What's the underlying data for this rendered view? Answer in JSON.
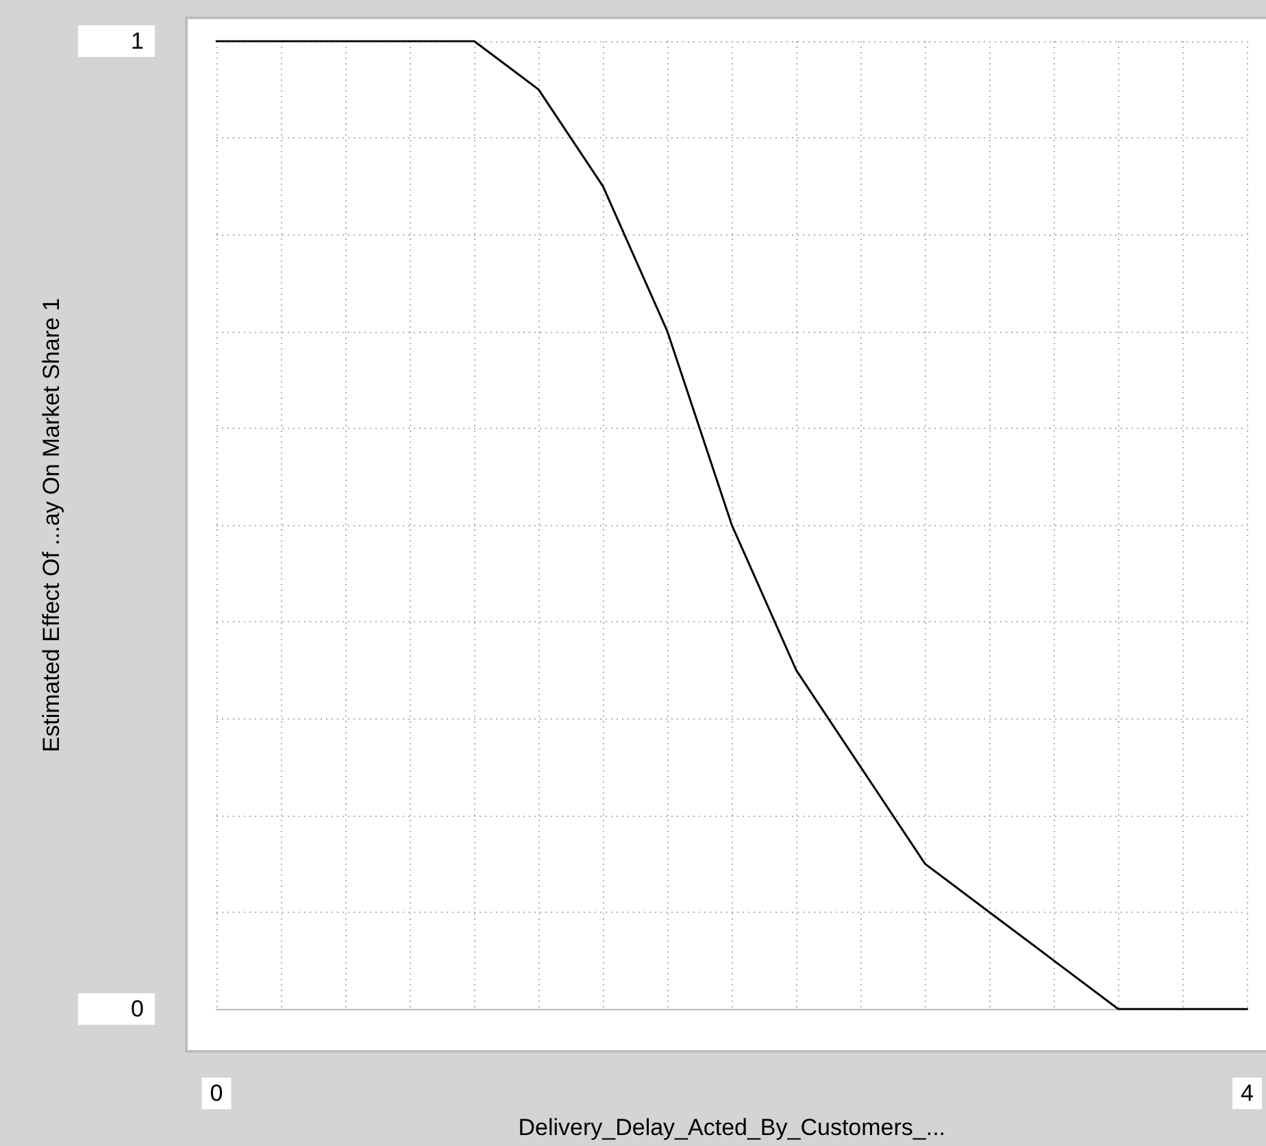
{
  "chart_data": {
    "type": "line",
    "xlabel": "Delivery_Delay_Acted_By_Customers_...",
    "ylabel": "Estimated Effect Of ...ay On Market Share 1",
    "x": [
      0,
      0.25,
      0.5,
      0.75,
      1.0,
      1.25,
      1.5,
      1.75,
      2.0,
      2.25,
      2.5,
      2.75,
      3.0,
      3.25,
      3.5,
      3.75,
      4.0
    ],
    "series": [
      {
        "color": "#000000",
        "values": [
          1,
          1,
          1,
          1,
          1,
          0.95,
          0.85,
          0.7,
          0.5,
          0.35,
          0.25,
          0.15,
          0.1,
          0.05,
          0,
          0,
          0
        ]
      }
    ],
    "xlim": [
      0,
      4
    ],
    "xticks": [
      0,
      {
        "value": 0.25,
        "label": null
      },
      {
        "value": 0.5,
        "label": null
      },
      {
        "value": 0.75,
        "label": null
      },
      {
        "value": 1,
        "label": null
      },
      {
        "value": 1.25,
        "label": null
      },
      {
        "value": 1.5,
        "label": null
      },
      {
        "value": 1.75,
        "label": null
      },
      {
        "value": 2,
        "label": null
      },
      {
        "value": 2.25,
        "label": null
      },
      {
        "value": 2.5,
        "label": null
      },
      {
        "value": 2.75,
        "label": null
      },
      {
        "value": 3,
        "label": null
      },
      {
        "value": 3.25,
        "label": null
      },
      {
        "value": 3.5,
        "label": null
      },
      {
        "value": 3.75,
        "label": null
      },
      4
    ],
    "ylim": [
      0,
      1
    ],
    "yticks": [
      0,
      {
        "value": 0.1,
        "label": null
      },
      {
        "value": 0.2,
        "label": null
      },
      {
        "value": 0.3,
        "label": null
      },
      {
        "value": 0.4,
        "label": null
      },
      {
        "value": 0.5,
        "label": null
      },
      {
        "value": 0.6,
        "label": null
      },
      {
        "value": 0.7,
        "label": null
      },
      {
        "value": 0.8,
        "label": null
      },
      {
        "value": 0.9,
        "label": null
      },
      1
    ],
    "grid": true,
    "marker": "none",
    "line_style": "solid"
  }
}
